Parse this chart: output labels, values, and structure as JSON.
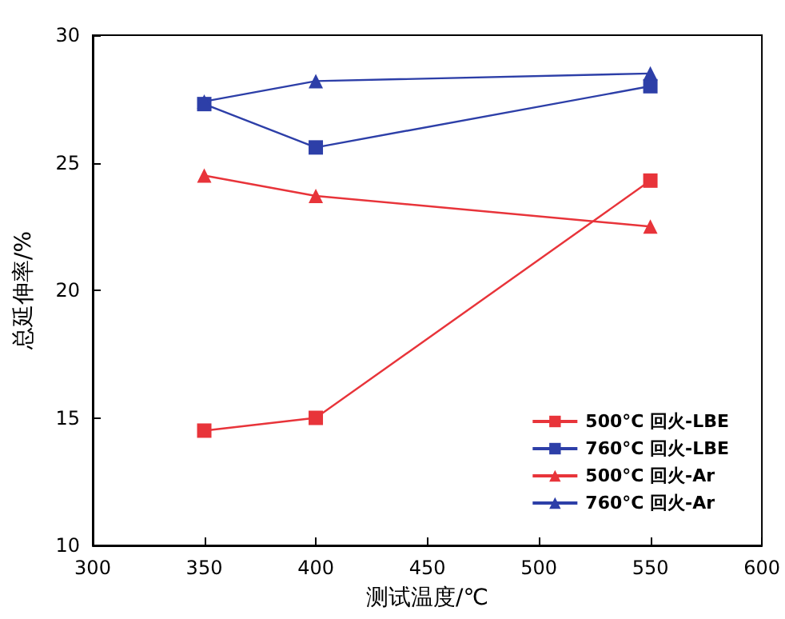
{
  "chart_data": {
    "type": "line",
    "xlabel": "测试温度/℃",
    "ylabel": "总延伸率/%",
    "x": [
      350,
      400,
      550
    ],
    "xlim": [
      300,
      600
    ],
    "xticks": [
      300,
      350,
      400,
      450,
      500,
      550,
      600
    ],
    "ylim": [
      10,
      30
    ],
    "yticks": [
      10,
      15,
      20,
      25,
      30
    ],
    "grid": false,
    "legend": "bottom right",
    "line_style": "solid",
    "series": [
      {
        "name": "500°C 回火-LBE",
        "color": "#e8343a",
        "marker": "square",
        "values": [
          14.5,
          15.0,
          24.3
        ]
      },
      {
        "name": "760°C 回火-LBE",
        "color": "#2d3fa8",
        "marker": "square",
        "values": [
          27.3,
          25.6,
          28.0
        ]
      },
      {
        "name": "500°C 回火-Ar",
        "color": "#e8343a",
        "marker": "triangle",
        "values": [
          24.5,
          23.7,
          22.5
        ]
      },
      {
        "name": "760°C 回火-Ar",
        "color": "#2d3fa8",
        "marker": "triangle",
        "values": [
          27.4,
          28.2,
          28.5
        ]
      }
    ]
  }
}
